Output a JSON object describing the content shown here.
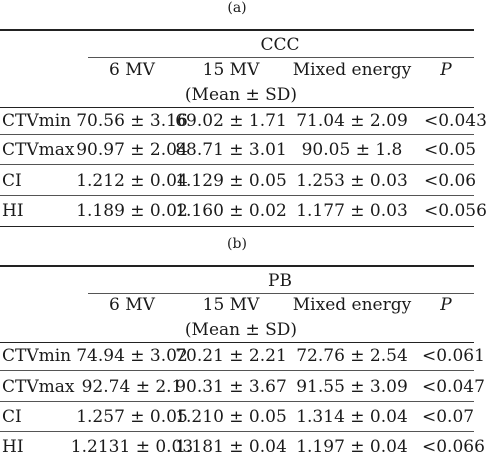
{
  "panels": [
    {
      "caption": "(a)",
      "group_label": "CCC",
      "columns": [
        "6 MV",
        "15 MV",
        "Mixed energy",
        "P"
      ],
      "subheader": "(Mean ± SD)",
      "rows": [
        {
          "label": "CTVmin",
          "v1": "70.56 ± 3.16",
          "v2": "69.02 ± 1.71",
          "v3": "71.04 ± 2.09",
          "p": "<0.043"
        },
        {
          "label": "CTVmax",
          "v1": "90.97 ± 2.04",
          "v2": "88.71 ± 3.01",
          "v3": "90.05 ± 1.8",
          "p": "<0.05"
        },
        {
          "label": "CI",
          "v1": "1.212 ± 0.04",
          "v2": "1.129 ± 0.05",
          "v3": "1.253 ± 0.03",
          "p": "<0.06"
        },
        {
          "label": "HI",
          "v1": "1.189 ± 0.02",
          "v2": "1.160 ± 0.02",
          "v3": "1.177 ± 0.03",
          "p": "<0.056"
        }
      ]
    },
    {
      "caption": "(b)",
      "group_label": "PB",
      "columns": [
        "6 MV",
        "15 MV",
        "Mixed energy",
        "P"
      ],
      "subheader": "(Mean ± SD)",
      "rows": [
        {
          "label": "CTVmin",
          "v1": "74.94 ± 3.02",
          "v2": "70.21 ± 2.21",
          "v3": "72.76 ± 2.54",
          "p": "<0.061"
        },
        {
          "label": "CTVmax",
          "v1": "92.74 ± 2.1",
          "v2": "90.31 ± 3.67",
          "v3": "91.55 ± 3.09",
          "p": "<0.047"
        },
        {
          "label": "CI",
          "v1": "1.257 ± 0.05",
          "v2": "1.210 ± 0.05",
          "v3": "1.314 ± 0.04",
          "p": "<0.07"
        },
        {
          "label": "HI",
          "v1": "1.2131 ± 0.03",
          "v2": "1.181 ± 0.04",
          "v3": "1.197 ± 0.04",
          "p": "<0.066"
        }
      ]
    }
  ]
}
